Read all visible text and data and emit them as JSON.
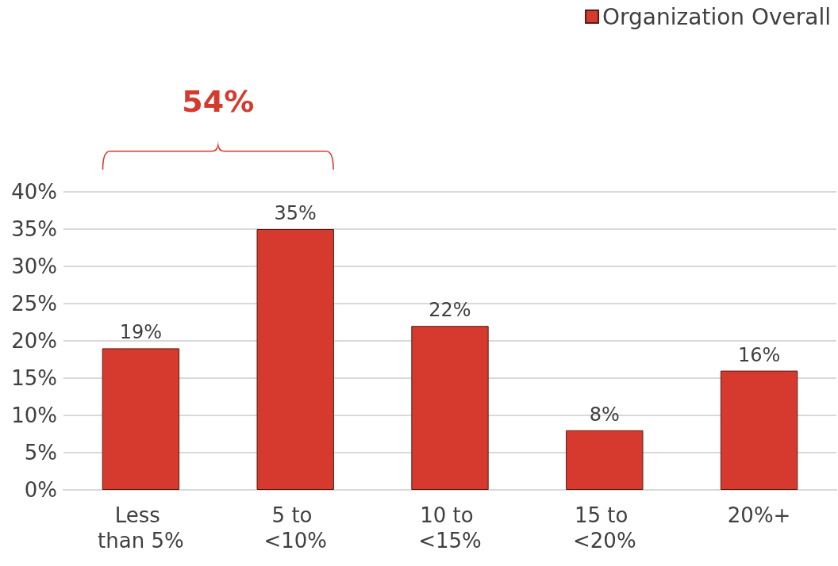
{
  "chart_data": {
    "type": "bar",
    "categories": [
      "Less than 5%",
      "5 to <10%",
      "10 to <15%",
      "15 to <20%",
      "20%+"
    ],
    "series": [
      {
        "name": "Organization Overall",
        "color": "#d63a2e",
        "values": [
          19,
          35,
          22,
          8,
          16
        ],
        "value_labels": [
          "19%",
          "35%",
          "22%",
          "8%",
          "16%"
        ]
      }
    ],
    "ylim": [
      0,
      40
    ],
    "yticks": [
      {
        "value": 0,
        "label": "0%"
      },
      {
        "value": 5,
        "label": "5%"
      },
      {
        "value": 10,
        "label": "10%"
      },
      {
        "value": 15,
        "label": "15%"
      },
      {
        "value": 20,
        "label": "20%"
      },
      {
        "value": 25,
        "label": "25%"
      },
      {
        "value": 30,
        "label": "30%"
      },
      {
        "value": 35,
        "label": "35%"
      },
      {
        "value": 40,
        "label": "40%"
      }
    ],
    "annotations": [
      "54%"
    ],
    "grid": "y",
    "legend": "top right"
  }
}
